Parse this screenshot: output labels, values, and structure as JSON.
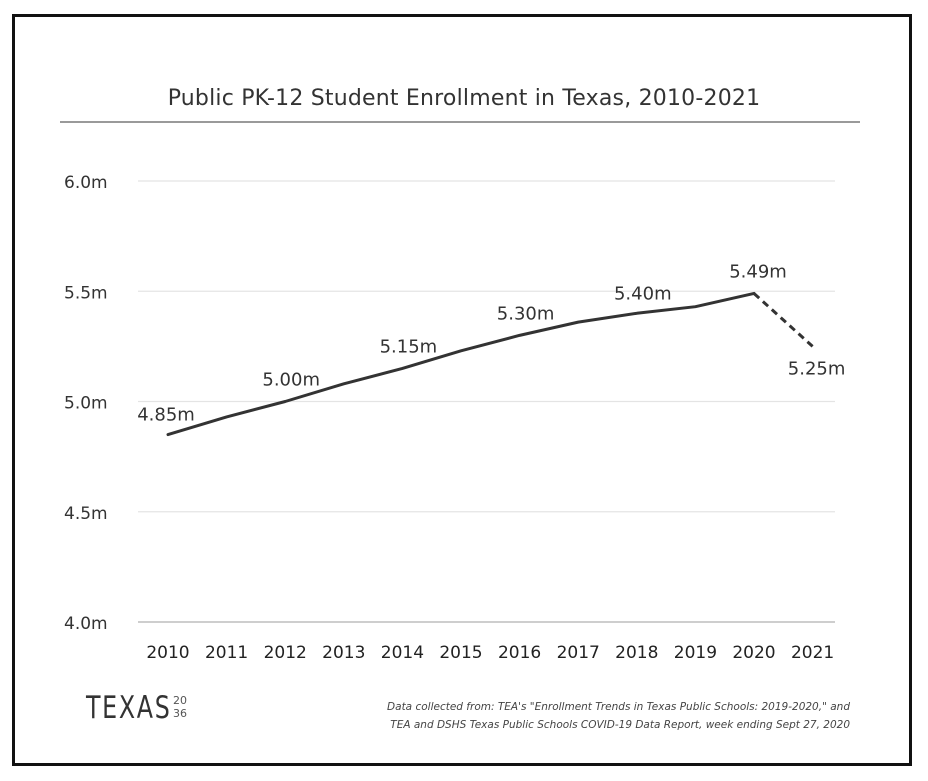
{
  "chart_data": {
    "type": "line",
    "title": "Public PK-12 Student Enrollment in Texas, 2010-2021",
    "xlabel": "",
    "ylabel": "",
    "ylim": [
      4.0,
      6.0
    ],
    "y_ticks": [
      {
        "value": 4.0,
        "label": "4.0m"
      },
      {
        "value": 4.5,
        "label": "4.5m"
      },
      {
        "value": 5.0,
        "label": "5.0m"
      },
      {
        "value": 5.5,
        "label": "5.5m"
      },
      {
        "value": 6.0,
        "label": "6.0m"
      }
    ],
    "x": [
      "2010",
      "2011",
      "2012",
      "2013",
      "2014",
      "2015",
      "2016",
      "2017",
      "2018",
      "2019",
      "2020",
      "2021"
    ],
    "series": [
      {
        "values": [
          4.85,
          4.93,
          5.0,
          5.08,
          5.15,
          5.23,
          5.3,
          5.36,
          5.4,
          5.43,
          5.49,
          5.25
        ],
        "solid_until_index": 10,
        "color": "#333333"
      }
    ],
    "data_labels": [
      {
        "index": 0,
        "text": "4.85m"
      },
      {
        "index": 2,
        "text": "5.00m"
      },
      {
        "index": 4,
        "text": "5.15m"
      },
      {
        "index": 6,
        "text": "5.30m"
      },
      {
        "index": 8,
        "text": "5.40m"
      },
      {
        "index": 10,
        "text": "5.49m"
      },
      {
        "index": 11,
        "text": "5.25m"
      }
    ],
    "grid": true
  },
  "branding": {
    "logo_text": "TEXAS",
    "logo_mark": "2036"
  },
  "source": {
    "line1": "Data collected from: TEA's \"Enrollment Trends in Texas Public Schools: 2019-2020,\" and",
    "line2": "TEA and DSHS Texas Public Schools COVID-19 Data Report, week ending Sept 27, 2020"
  }
}
